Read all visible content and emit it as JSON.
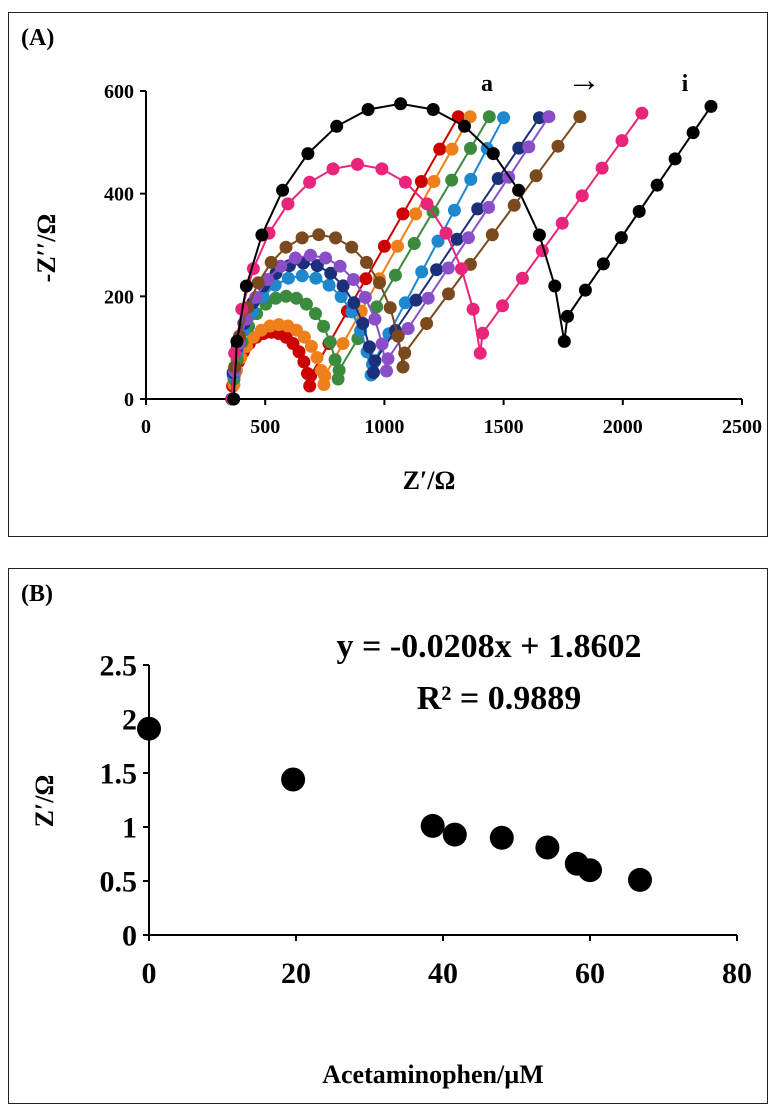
{
  "chart_data": [
    {
      "panel": "(A)",
      "type": "line",
      "title": "",
      "xlabel": "Z′/Ω",
      "ylabel": "-Z′′/Ω",
      "xlim": [
        0,
        2500
      ],
      "ylim": [
        0,
        600
      ],
      "xticks": [
        "0",
        "500",
        "1000",
        "1500",
        "2000",
        "2500"
      ],
      "yticks": [
        "0",
        "200",
        "400",
        "600"
      ],
      "grid": false,
      "annotation": {
        "start": "a",
        "arrow": "→",
        "end": "i"
      },
      "series": [
        {
          "color": "#cc0000",
          "rs": 360,
          "rct": 330,
          "peak": 130,
          "x_end": 1310,
          "y_end": 550
        },
        {
          "color": "#ef7f1a",
          "rs": 365,
          "rct": 385,
          "peak": 145,
          "x_end": 1360,
          "y_end": 550
        },
        {
          "color": "#3b8a3e",
          "rs": 365,
          "rct": 445,
          "peak": 200,
          "x_end": 1440,
          "y_end": 550
        },
        {
          "color": "#1e88cf",
          "rs": 360,
          "rct": 590,
          "peak": 240,
          "x_end": 1500,
          "y_end": 548
        },
        {
          "color": "#1c2f7a",
          "rs": 360,
          "rct": 600,
          "peak": 265,
          "x_end": 1650,
          "y_end": 548
        },
        {
          "color": "#8a4fc8",
          "rs": 365,
          "rct": 650,
          "peak": 280,
          "x_end": 1690,
          "y_end": 550
        },
        {
          "color": "#7a4a1e",
          "rs": 365,
          "rct": 720,
          "peak": 320,
          "x_end": 1820,
          "y_end": 550
        },
        {
          "color": "#e8257a",
          "rs": 362,
          "rct": 1050,
          "peak": 457,
          "x_end": 2080,
          "y_end": 557
        },
        {
          "color": "#000000",
          "rs": 368,
          "rct": 1400,
          "peak": 575,
          "x_end": 2370,
          "y_end": 570
        }
      ]
    },
    {
      "panel": "(B)",
      "type": "scatter",
      "title": "",
      "xlabel": "Acetaminophen/µM",
      "ylabel": "Z′/Ω",
      "xlim": [
        0,
        80
      ],
      "ylim": [
        0,
        2.5
      ],
      "xticks": [
        "0",
        "20",
        "40",
        "60",
        "80"
      ],
      "yticks": [
        "0",
        "0.5",
        "1",
        "1.5",
        "2",
        "2.5"
      ],
      "grid": false,
      "equation": "y = -0.0208x + 1.8602",
      "r2": "R² = 0.9889",
      "x": [
        0,
        19.6,
        38.6,
        41.6,
        48.0,
        54.2,
        58.2,
        60.0,
        66.8
      ],
      "y": [
        1.91,
        1.44,
        1.01,
        0.93,
        0.9,
        0.81,
        0.66,
        0.6,
        0.51
      ]
    }
  ]
}
